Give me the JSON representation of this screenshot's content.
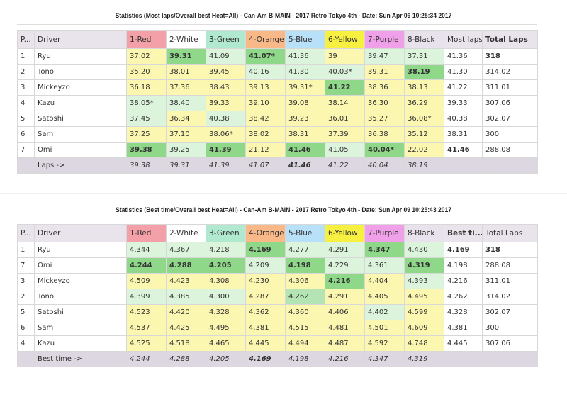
{
  "colors": {
    "1-Red": "#f4a0a8",
    "2-White": "#ffffff",
    "3-Green": "#b0e8d0",
    "4-Orange": "#f8b888",
    "5-Blue": "#b8e0f8",
    "6-Yellow": "#f8f040",
    "7-Purple": "#f0a0e8",
    "8-Black": "#e8e2ec"
  },
  "tables": [
    {
      "title": "Statistics (Most laps/Overall best Heat=All) - Can-Am B-MAIN - 2017 Retro Tokyo 4th - Date: Sun Apr 09 10:25:34 2017",
      "headers": [
        "P...",
        "Driver",
        "1-Red",
        "2-White",
        "3-Green",
        "4-Orange",
        "5-Blue",
        "6-Yellow",
        "7-Purple",
        "8-Black",
        "Most laps",
        "Total Laps"
      ],
      "rows": [
        {
          "pos": "1",
          "driver": "Ryu",
          "cells": [
            "37.02",
            "39.31",
            "41.09",
            "41.07*",
            "41.36",
            "39",
            "39.47",
            "37.31"
          ],
          "shades": [
            "y",
            "g",
            "lg",
            "g",
            "lg",
            "y",
            "lg",
            "lg"
          ],
          "best": "41.36",
          "total": "318",
          "bold_best": false,
          "bold_total": true
        },
        {
          "pos": "2",
          "driver": "Tono",
          "cells": [
            "35.20",
            "38.01",
            "39.45",
            "40.16",
            "41.30",
            "40.03*",
            "39.31",
            "38.19"
          ],
          "shades": [
            "y",
            "y",
            "y",
            "lg",
            "lg",
            "lg",
            "y",
            "g"
          ],
          "best": "41.30",
          "total": "314.02"
        },
        {
          "pos": "3",
          "driver": "Mickeyzo",
          "cells": [
            "36.18",
            "37.36",
            "38.43",
            "39.13",
            "39.31*",
            "41.22",
            "38.36",
            "38.13"
          ],
          "shades": [
            "y",
            "y",
            "y",
            "y",
            "y",
            "g",
            "y",
            "y"
          ],
          "best": "41.22",
          "total": "311.01"
        },
        {
          "pos": "4",
          "driver": "Kazu",
          "cells": [
            "38.05*",
            "38.40",
            "39.33",
            "39.10",
            "39.08",
            "38.14",
            "36.30",
            "36.29"
          ],
          "shades": [
            "lg",
            "lg",
            "y",
            "y",
            "y",
            "y",
            "y",
            "y"
          ],
          "best": "39.33",
          "total": "307.06"
        },
        {
          "pos": "5",
          "driver": "Satoshi",
          "cells": [
            "37.45",
            "36.34",
            "40.38",
            "38.42",
            "39.23",
            "36.01",
            "35.27",
            "36.08*"
          ],
          "shades": [
            "lg",
            "y",
            "lg",
            "y",
            "y",
            "y",
            "y",
            "y"
          ],
          "best": "40.38",
          "total": "302.07"
        },
        {
          "pos": "6",
          "driver": "Sam",
          "cells": [
            "37.25",
            "37.10",
            "38.06*",
            "38.02",
            "38.31",
            "37.39",
            "36.38",
            "35.12"
          ],
          "shades": [
            "y",
            "y",
            "y",
            "y",
            "y",
            "y",
            "y",
            "y"
          ],
          "best": "38.31",
          "total": "300"
        },
        {
          "pos": "7",
          "driver": "Omi",
          "cells": [
            "39.38",
            "39.25",
            "41.39",
            "21.12",
            "41.46",
            "41.05",
            "40.04*",
            "22.02"
          ],
          "shades": [
            "g",
            "lg",
            "g",
            "y",
            "g",
            "lg",
            "g",
            "y"
          ],
          "best": "41.46",
          "total": "288.08",
          "bold_best": true
        }
      ],
      "footer": {
        "label": "Laps ->",
        "cells": [
          "39.38",
          "39.31",
          "41.39",
          "41.07",
          "41.46",
          "41.22",
          "40.04",
          "38.19"
        ],
        "bold_index": 4
      }
    },
    {
      "title": "Statistics (Best time/Overall best Heat=All) - Can-Am B-MAIN - 2017 Retro Tokyo 4th - Date: Sun Apr 09 10:25:43 2017",
      "headers": [
        "P...",
        "Driver",
        "1-Red",
        "2-White",
        "3-Green",
        "4-Orange",
        "5-Blue",
        "6-Yellow",
        "7-Purple",
        "8-Black",
        "Best ti...",
        "Total Laps"
      ],
      "rows": [
        {
          "pos": "1",
          "driver": "Ryu",
          "cells": [
            "4.344",
            "4.367",
            "4.218",
            "4.169",
            "4.277",
            "4.291",
            "4.347",
            "4.430"
          ],
          "shades": [
            "lg",
            "lg",
            "lg",
            "g",
            "lg",
            "lg",
            "g",
            "lg"
          ],
          "best": "4.169",
          "total": "318",
          "bold_best": true,
          "bold_total": true
        },
        {
          "pos": "7",
          "driver": "Omi",
          "cells": [
            "4.244",
            "4.288",
            "4.205",
            "4.209",
            "4.198",
            "4.229",
            "4.361",
            "4.319"
          ],
          "shades": [
            "g",
            "g",
            "g",
            "lg",
            "g",
            "lg",
            "lg",
            "g"
          ],
          "best": "4.198",
          "total": "288.08"
        },
        {
          "pos": "3",
          "driver": "Mickeyzo",
          "cells": [
            "4.509",
            "4.423",
            "4.308",
            "4.230",
            "4.306",
            "4.216",
            "4.404",
            "4.393"
          ],
          "shades": [
            "y",
            "y",
            "y",
            "y",
            "y",
            "g",
            "y",
            "lg"
          ],
          "best": "4.216",
          "total": "311.01"
        },
        {
          "pos": "2",
          "driver": "Tono",
          "cells": [
            "4.399",
            "4.385",
            "4.300",
            "4.287",
            "4.262",
            "4.291",
            "4.405",
            "4.495"
          ],
          "shades": [
            "lg",
            "lg",
            "lg",
            "y",
            "m",
            "y",
            "y",
            "y"
          ],
          "best": "4.262",
          "total": "314.02"
        },
        {
          "pos": "5",
          "driver": "Satoshi",
          "cells": [
            "4.523",
            "4.420",
            "4.328",
            "4.362",
            "4.360",
            "4.406",
            "4.402",
            "4.599"
          ],
          "shades": [
            "y",
            "y",
            "y",
            "y",
            "y",
            "y",
            "lg",
            "y"
          ],
          "best": "4.328",
          "total": "302.07"
        },
        {
          "pos": "6",
          "driver": "Sam",
          "cells": [
            "4.537",
            "4.425",
            "4.495",
            "4.381",
            "4.515",
            "4.481",
            "4.501",
            "4.609"
          ],
          "shades": [
            "y",
            "y",
            "y",
            "y",
            "y",
            "y",
            "y",
            "y"
          ],
          "best": "4.381",
          "total": "300"
        },
        {
          "pos": "4",
          "driver": "Kazu",
          "cells": [
            "4.525",
            "4.518",
            "4.465",
            "4.445",
            "4.494",
            "4.487",
            "4.592",
            "4.748"
          ],
          "shades": [
            "y",
            "y",
            "y",
            "y",
            "y",
            "y",
            "y",
            "y"
          ],
          "best": "4.445",
          "total": "307.06"
        }
      ],
      "footer": {
        "label": "Best time ->",
        "cells": [
          "4.244",
          "4.288",
          "4.205",
          "4.169",
          "4.198",
          "4.216",
          "4.347",
          "4.319"
        ],
        "bold_index": 3
      }
    }
  ]
}
